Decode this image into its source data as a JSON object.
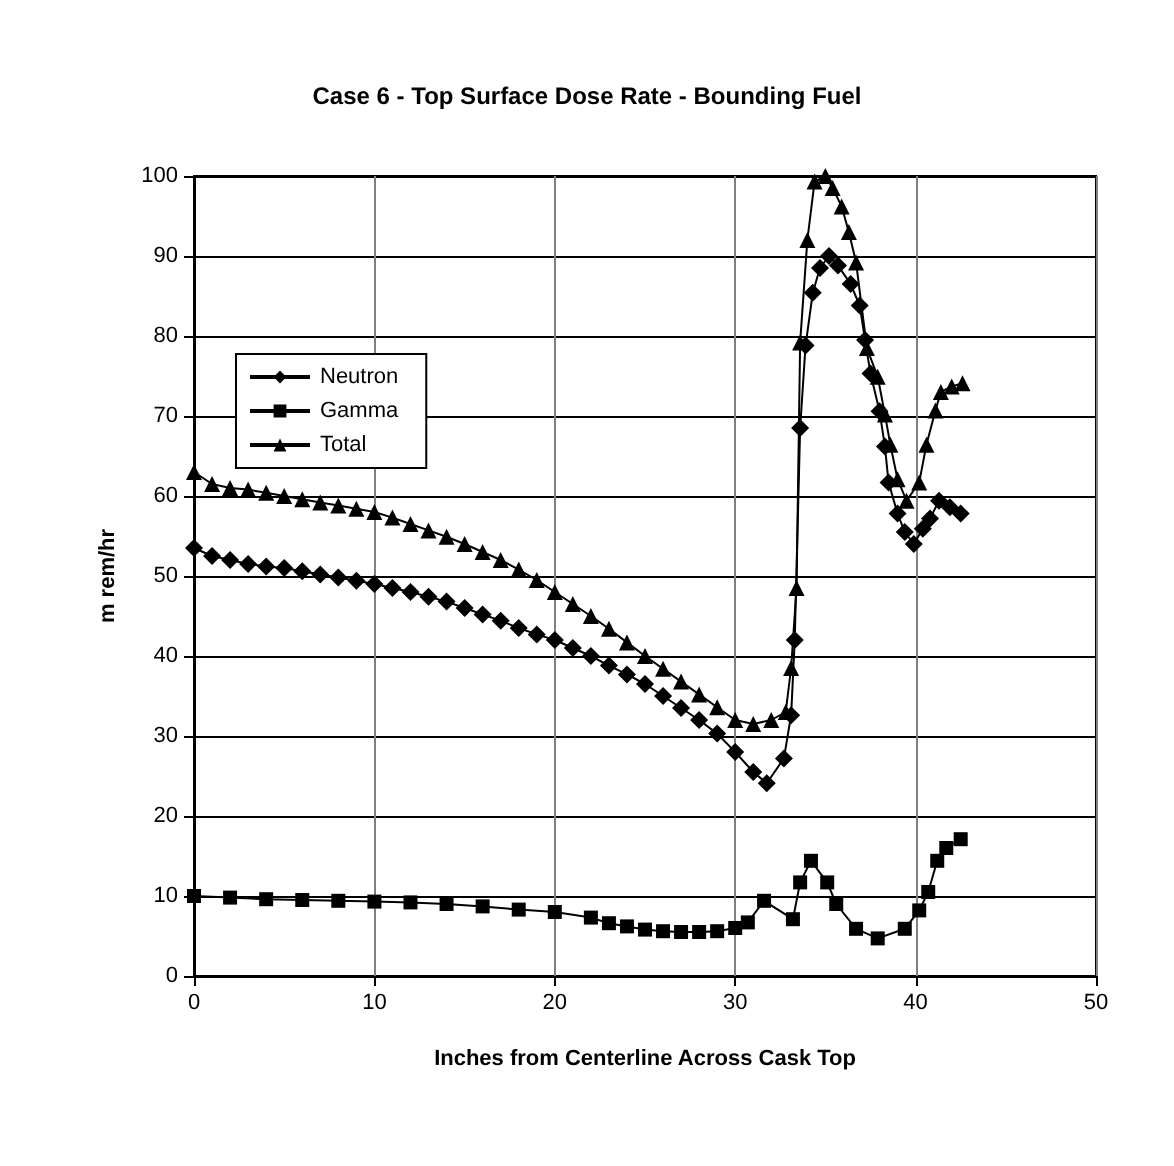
{
  "chart_data": {
    "type": "line",
    "title": "Case 6 - Top Surface Dose Rate - Bounding Fuel",
    "xlabel": "Inches from Centerline Across Cask Top",
    "ylabel": "m rem/hr",
    "xlim": [
      0,
      50
    ],
    "xticks": [
      0,
      10,
      20,
      30,
      40,
      50
    ],
    "ylim": [
      0,
      100
    ],
    "yticks": [
      0,
      10,
      20,
      30,
      40,
      50,
      60,
      70,
      80,
      90,
      100
    ],
    "grid": true,
    "legend": "top left",
    "line_style": "solid",
    "series": [
      {
        "name": "Neutron",
        "color": "#000000",
        "marker": "diamond",
        "x": [
          0,
          1,
          2,
          3,
          4,
          5,
          6,
          7,
          8,
          9,
          10,
          11,
          12,
          13,
          14,
          15,
          16,
          17,
          18,
          19,
          20,
          21,
          22,
          23,
          24,
          25,
          26,
          27,
          28,
          29,
          30,
          31,
          31.75,
          32.7,
          33.1,
          33.3,
          33.6,
          33.9,
          34.3,
          34.7,
          35.2,
          35.7,
          36.4,
          36.9,
          37.2,
          37.5,
          38.0,
          38.3,
          38.5,
          39.0,
          39.4,
          39.9,
          40.4,
          40.8,
          41.3,
          41.9,
          42.5
        ],
        "values": [
          53.5,
          52.5,
          52,
          51.5,
          51.2,
          51,
          50.6,
          50.2,
          49.8,
          49.4,
          49,
          48.5,
          48,
          47.4,
          46.8,
          46,
          45.2,
          44.4,
          43.5,
          42.7,
          42,
          41,
          40,
          38.8,
          37.7,
          36.5,
          35,
          33.5,
          32,
          30.3,
          28,
          25.5,
          24.1,
          27.2,
          32.6,
          42,
          68.5,
          78.8,
          85.4,
          88.5,
          90,
          88.8,
          86.5,
          83.8,
          79.5,
          75.3,
          70.6,
          66.2,
          61.7,
          57.8,
          55.5,
          54,
          55.9,
          57.2,
          59.4,
          58.6,
          57.8
        ]
      },
      {
        "name": "Gamma",
        "color": "#000000",
        "marker": "square",
        "x": [
          0,
          2,
          4,
          6,
          8,
          10,
          12,
          14,
          16,
          18,
          20,
          22,
          23,
          24,
          25,
          26,
          27,
          28,
          29,
          30,
          30.7,
          31.6,
          33.2,
          33.6,
          34.2,
          35.1,
          35.6,
          36.7,
          37.9,
          39.4,
          40.2,
          40.7,
          41.2,
          41.7,
          42.5
        ],
        "values": [
          10,
          9.8,
          9.6,
          9.5,
          9.4,
          9.3,
          9.2,
          9,
          8.7,
          8.3,
          8,
          7.3,
          6.6,
          6.2,
          5.8,
          5.6,
          5.5,
          5.5,
          5.6,
          6,
          6.7,
          9.4,
          7.1,
          11.7,
          14.4,
          11.7,
          9,
          5.9,
          4.7,
          5.9,
          8.2,
          10.5,
          14.4,
          16,
          17.1
        ]
      },
      {
        "name": "Total",
        "color": "#000000",
        "marker": "triangle",
        "x": [
          0,
          1,
          2,
          3,
          4,
          5,
          6,
          7,
          8,
          9,
          10,
          11,
          12,
          13,
          14,
          15,
          16,
          17,
          18,
          19,
          20,
          21,
          22,
          23,
          24,
          25,
          26,
          27,
          28,
          29,
          30,
          31,
          32,
          32.8,
          33.1,
          33.4,
          33.6,
          34.0,
          34.4,
          35.0,
          35.4,
          35.9,
          36.3,
          36.7,
          37.3,
          37.9,
          38.3,
          38.6,
          39.0,
          39.5,
          40.2,
          40.6,
          41.1,
          41.4,
          42.0,
          42.6
        ],
        "values": [
          63,
          61.5,
          61,
          60.8,
          60.4,
          60,
          59.6,
          59.2,
          58.8,
          58.4,
          58,
          57.3,
          56.5,
          55.7,
          54.9,
          54,
          53,
          52,
          50.8,
          49.5,
          48,
          46.5,
          45,
          43.4,
          41.7,
          40,
          38.4,
          36.8,
          35.2,
          33.6,
          32,
          31.5,
          32,
          33,
          38.5,
          48.5,
          79.2,
          92,
          99.3,
          100,
          98.5,
          96.2,
          93,
          89.2,
          78.5,
          74.9,
          70.2,
          66.4,
          62.1,
          59.4,
          61.7,
          66.4,
          70.7,
          73,
          73.7,
          74.1
        ]
      }
    ]
  }
}
